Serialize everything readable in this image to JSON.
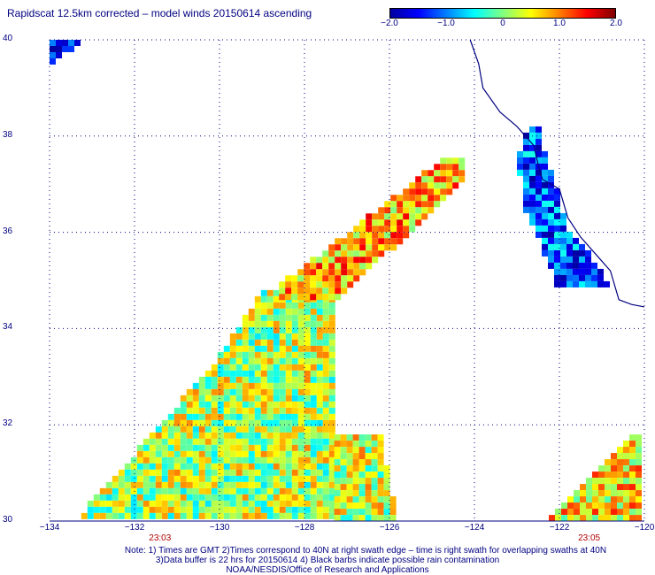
{
  "title": "Rapidscat 12.5km corrected – model winds 20150614 ascending",
  "colorbar": {
    "labels": [
      {
        "text": "−2.0",
        "value": -2.0
      },
      {
        "text": "−1.0",
        "value": -1.0
      },
      {
        "text": "0",
        "value": 0
      },
      {
        "text": "1.0",
        "value": 1.0
      },
      {
        "text": "2.0",
        "value": 2.0
      }
    ],
    "range": [
      -2.0,
      2.0
    ],
    "colors": [
      "#0000a0",
      "#0000ff",
      "#0080ff",
      "#00ffff",
      "#80ff80",
      "#ffff00",
      "#ff8000",
      "#ff0000",
      "#800000"
    ]
  },
  "map": {
    "lon_range": [
      -134,
      -120
    ],
    "lat_range": [
      30,
      40
    ],
    "grid": "dotted",
    "lat_labels": [
      {
        "text": "40",
        "lat": 40
      },
      {
        "text": "38",
        "lat": 38
      },
      {
        "text": "36",
        "lat": 36
      },
      {
        "text": "34",
        "lat": 34
      },
      {
        "text": "32",
        "lat": 32
      },
      {
        "text": "30",
        "lat": 30
      }
    ],
    "lon_labels": [
      {
        "text": "−134",
        "lon": -134
      },
      {
        "text": "−132",
        "lon": -132
      },
      {
        "text": "−130",
        "lon": -130
      },
      {
        "text": "−128",
        "lon": -128
      },
      {
        "text": "−126",
        "lon": -126
      },
      {
        "text": "−124",
        "lon": -124
      },
      {
        "text": "−122",
        "lon": -122
      },
      {
        "text": "−120",
        "lon": -120
      }
    ],
    "time_labels": [
      {
        "text": "23:03",
        "lon": -131.4
      },
      {
        "text": "23:05",
        "lon": -121.3
      }
    ],
    "swaths": [
      {
        "name": "swath-1-main",
        "polygon": [
          [
            -133.4,
            30
          ],
          [
            -130.2,
            33.2
          ],
          [
            -129,
            34.8
          ],
          [
            -127.3,
            34.8
          ],
          [
            -127.3,
            30
          ]
        ],
        "base": 0.2
      },
      {
        "name": "swath-1-strip",
        "polygon": [
          [
            -128.6,
            34.6
          ],
          [
            -128.6,
            34.9
          ],
          [
            -124.7,
            37.55
          ],
          [
            -124.2,
            37.55
          ],
          [
            -124.2,
            37.1
          ],
          [
            -127.2,
            34.6
          ]
        ],
        "base": 0.8
      },
      {
        "name": "swath-1-tail",
        "polygon": [
          [
            -127.3,
            30
          ],
          [
            -127.3,
            31.8
          ],
          [
            -126.2,
            31.8
          ],
          [
            -125.8,
            30
          ]
        ],
        "base": 0.3
      },
      {
        "name": "swath-2-coastal",
        "polygon": [
          [
            -122.7,
            38.2
          ],
          [
            -122.5,
            38.2
          ],
          [
            -121.8,
            36.1
          ],
          [
            -121,
            35.2
          ],
          [
            -120.7,
            34.8
          ],
          [
            -122,
            34.8
          ],
          [
            -122.8,
            36.5
          ],
          [
            -123,
            37.5
          ]
        ],
        "base": -1.2
      },
      {
        "name": "swath-2-south",
        "polygon": [
          [
            -124,
            30
          ],
          [
            -122.4,
            30
          ],
          [
            -121.5,
            30.7
          ],
          [
            -120.3,
            31.8
          ],
          [
            -120,
            31.8
          ],
          [
            -120,
            30
          ]
        ],
        "base": 0.6
      },
      {
        "name": "corner-nw",
        "polygon": [
          [
            -134,
            39.5
          ],
          [
            -133.3,
            39.9
          ],
          [
            -133.3,
            40
          ],
          [
            -134,
            40
          ]
        ],
        "base": -1.5
      }
    ],
    "coastline": [
      [
        -124.1,
        40
      ],
      [
        -123.9,
        39.5
      ],
      [
        -123.8,
        39
      ],
      [
        -123.4,
        38.5
      ],
      [
        -123,
        38.2
      ],
      [
        -122.6,
        37.8
      ],
      [
        -122.5,
        37.4
      ],
      [
        -122.4,
        37.1
      ],
      [
        -122,
        36.9
      ],
      [
        -121.9,
        36.6
      ],
      [
        -121.8,
        36.3
      ],
      [
        -121.5,
        35.9
      ],
      [
        -121.1,
        35.5
      ],
      [
        -120.8,
        35.2
      ],
      [
        -120.6,
        34.6
      ],
      [
        -120.3,
        34.5
      ],
      [
        -120,
        34.45
      ]
    ]
  },
  "notes": [
    "Note: 1) Times are GMT 2)Times correspond to 40N at right swath edge – time is right swath for overlapping swaths at 40N",
    "3)Data buffer is 22 hrs for 20150614 4) Black barbs indicate possible rain contamination",
    "NOAA/NESDIS/Office of Research and Applications"
  ]
}
